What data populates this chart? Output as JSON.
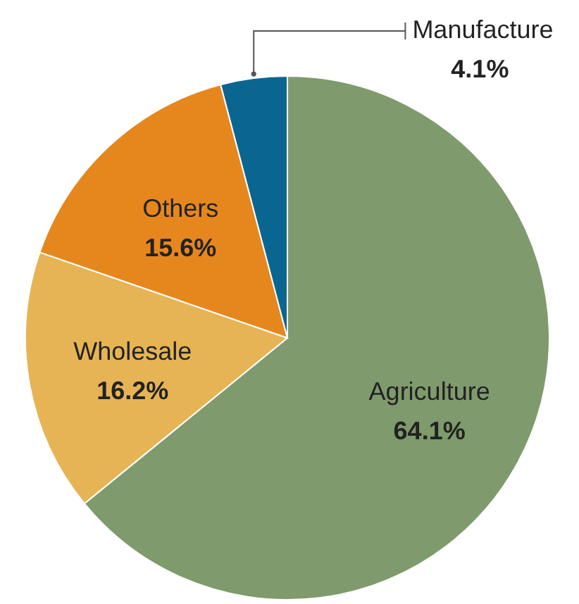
{
  "chart_data": {
    "type": "pie",
    "categories": [
      "Agriculture",
      "Wholesale",
      "Others",
      "Manufacture"
    ],
    "values": [
      64.1,
      16.2,
      15.6,
      4.1
    ],
    "colors": [
      "#7f9a6c",
      "#e6b454",
      "#e6871e",
      "#0a6690"
    ],
    "value_labels": [
      "64.1%",
      "16.2%",
      "15.6%",
      "4.1%"
    ]
  }
}
